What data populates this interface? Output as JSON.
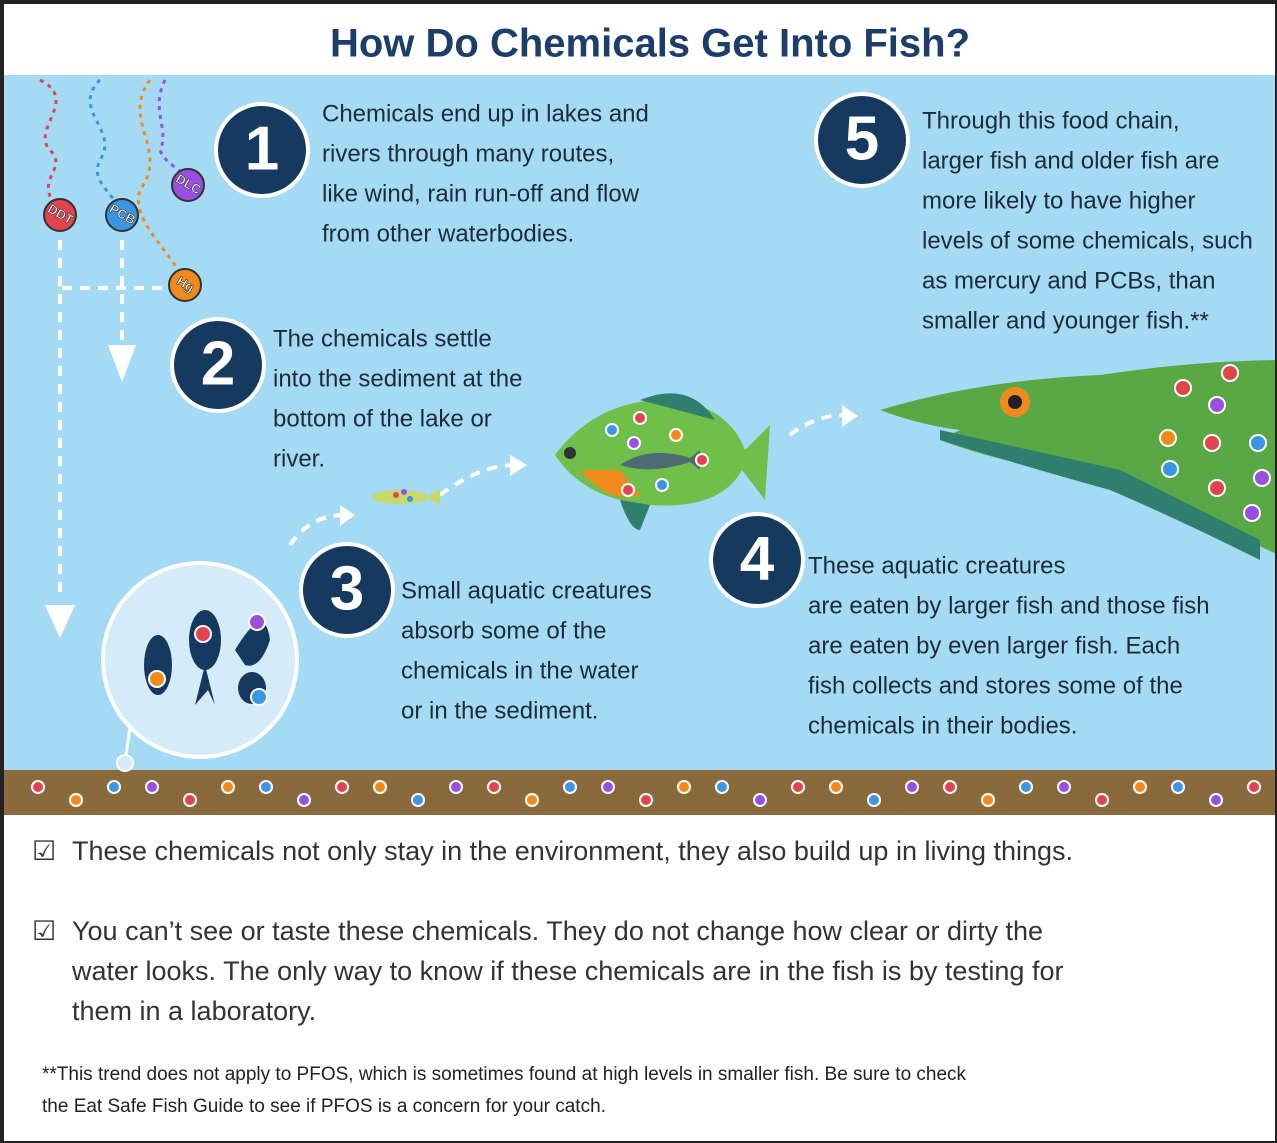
{
  "header": {
    "title": "How Do Chemicals Get Into Fish?"
  },
  "chemicals": [
    "DDT",
    "PCB",
    "DLC",
    "Hg"
  ],
  "steps": [
    {
      "number": "1",
      "lines": [
        "Chemicals end up in lakes and",
        "rivers through many routes,",
        "like wind, rain run-off and flow",
        "from other waterbodies."
      ]
    },
    {
      "number": "2",
      "lines": [
        "The chemicals settle",
        "into the sediment at the",
        "bottom of the lake or",
        "river."
      ]
    },
    {
      "number": "3",
      "lines": [
        "Small aquatic creatures",
        "absorb some of the",
        "chemicals in the water",
        "or in the sediment."
      ]
    },
    {
      "number": "4",
      "lines": [
        "These aquatic creatures",
        "are eaten by larger fish and those fish",
        "are eaten by even larger fish. Each",
        "fish collects and stores some of the",
        "chemicals in their bodies."
      ]
    },
    {
      "number": "5",
      "lines": [
        "Through this food chain,",
        "larger fish and older fish are",
        "more likely to have higher",
        "levels of some chemicals, such",
        "as mercury and PCBs, than",
        "smaller and younger fish.**"
      ]
    }
  ],
  "bullets": [
    {
      "mark": "☑",
      "lines": [
        "These chemicals not only stay in the environment, they also build up in living things."
      ]
    },
    {
      "mark": "☑",
      "lines": [
        "You can’t see or taste these chemicals. They do not change how clear or dirty the",
        "water looks. The only way to know if these chemicals are in the fish is by testing for",
        "them in a laboratory."
      ]
    }
  ],
  "footnote": {
    "lines": [
      "**This trend does not apply to PFOS, which is sometimes found at high levels in smaller fish. Be sure to check",
      "the Eat Safe Fish Guide to see if PFOS is a concern for your catch."
    ]
  }
}
